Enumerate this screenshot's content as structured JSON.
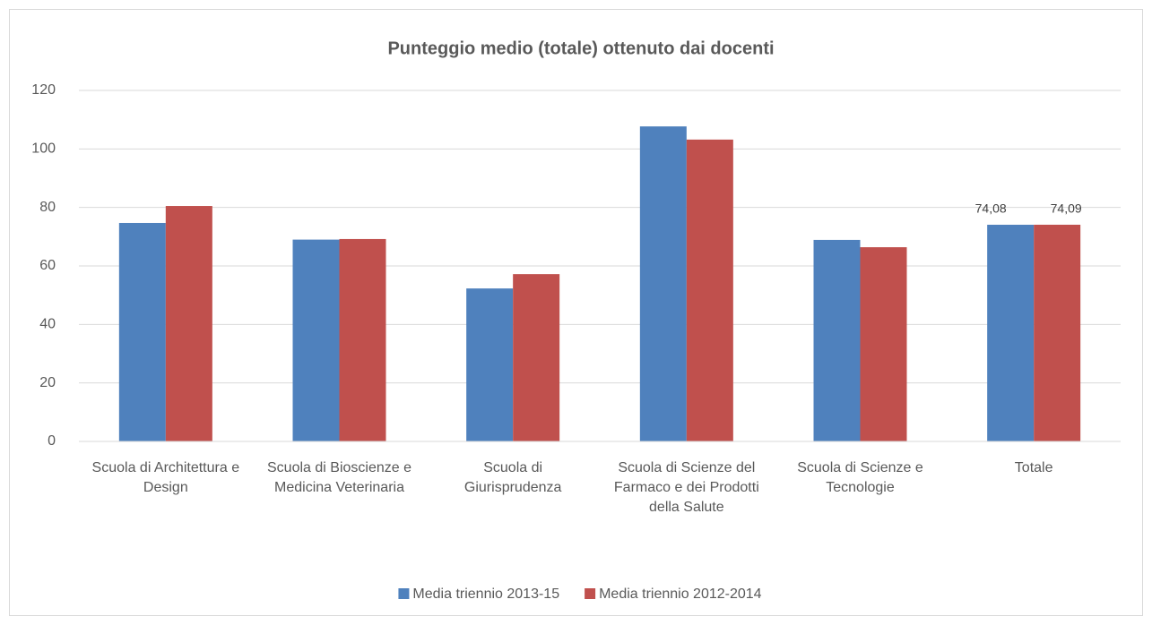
{
  "chart_data": {
    "type": "bar",
    "title": "Punteggio medio (totale) ottenuto dai docenti",
    "categories": [
      "Scuola di Architettura e Design",
      "Scuola di Bioscienze e Medicina Veterinaria",
      "Scuola di Giurisprudenza",
      "Scuola di Scienze del Farmaco e dei Prodotti della Salute",
      "Scuola di Scienze e Tecnologie",
      "Totale"
    ],
    "series": [
      {
        "name": "Media triennio 2013-15",
        "color": "#4f81bd",
        "values": [
          74.7,
          69,
          52.3,
          107.7,
          68.9,
          74.08
        ],
        "value_labels": [
          null,
          null,
          null,
          null,
          null,
          "74,08"
        ]
      },
      {
        "name": "Media triennio 2012-2014",
        "color": "#c0504d",
        "values": [
          80.5,
          69.2,
          57.2,
          103.2,
          66.4,
          74.09
        ],
        "value_labels": [
          null,
          null,
          null,
          null,
          null,
          "74,09"
        ]
      }
    ],
    "ylim": [
      0,
      120
    ],
    "yticks": [
      0,
      20,
      40,
      60,
      80,
      100,
      120
    ],
    "grid": true,
    "legend": "bottom"
  }
}
